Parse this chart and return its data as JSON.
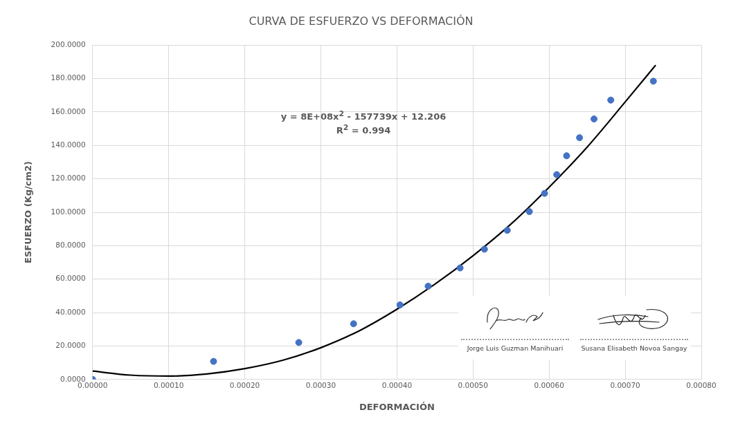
{
  "chart_data": {
    "type": "scatter",
    "title": "CURVA DE ESFUERZO VS DEFORMACIÓN",
    "xlabel": "DEFORMACIÓN",
    "ylabel": "ESFUERZO (Kg/cm2)",
    "xlim": [
      0,
      0.0008
    ],
    "xticks": [
      {
        "value": 0,
        "label": "0.00000"
      },
      {
        "value": 0.0001,
        "label": "0.00010"
      },
      {
        "value": 0.0002,
        "label": "0.00020"
      },
      {
        "value": 0.0003,
        "label": "0.00030"
      },
      {
        "value": 0.0004,
        "label": "0.00040"
      },
      {
        "value": 0.0005,
        "label": "0.00050"
      },
      {
        "value": 0.0006,
        "label": "0.00060"
      },
      {
        "value": 0.0007,
        "label": "0.00070"
      },
      {
        "value": 0.0008,
        "label": "0.00080"
      }
    ],
    "ylim": [
      0,
      200
    ],
    "yticks": [
      {
        "value": 0,
        "label": "0.0000"
      },
      {
        "value": 20,
        "label": "20.0000"
      },
      {
        "value": 40,
        "label": "40.0000"
      },
      {
        "value": 60,
        "label": "60.0000"
      },
      {
        "value": 80,
        "label": "80.0000"
      },
      {
        "value": 100,
        "label": "100.0000"
      },
      {
        "value": 120,
        "label": "120.0000"
      },
      {
        "value": 140,
        "label": "140.0000"
      },
      {
        "value": 160,
        "label": "160.0000"
      },
      {
        "value": 180,
        "label": "180.0000"
      },
      {
        "value": 200,
        "label": "200.0000"
      }
    ],
    "grid": true,
    "legend": false,
    "series": [
      {
        "type": "scatter",
        "color": "#4472c4",
        "marker": "circle",
        "x": [
          0,
          0.000159,
          0.000271,
          0.000343,
          0.000404,
          0.000441,
          0.000483,
          0.000515,
          0.000545,
          0.000574,
          0.000594,
          0.00061,
          0.000623,
          0.00064,
          0.000659,
          0.000681,
          0.000737
        ],
        "values": [
          0,
          10.8,
          22.1,
          33.3,
          44.6,
          55.8,
          66.7,
          77.9,
          89.2,
          100.4,
          111.3,
          122.5,
          133.8,
          144.6,
          155.8,
          167.1,
          178.4
        ]
      },
      {
        "type": "line",
        "color": "#000000",
        "marker": "none",
        "line_style": "solid",
        "x": [
          0,
          5e-05,
          0.0001,
          0.00015,
          0.0002,
          0.00025,
          0.0003,
          0.00035,
          0.0004,
          0.00045,
          0.0005,
          0.00055,
          0.0006,
          0.00065,
          0.0007,
          0.00074
        ],
        "values": [
          5,
          2.6,
          2,
          3.3,
          6.5,
          11.5,
          19,
          29,
          42,
          57,
          74,
          93,
          115,
          139,
          166,
          188
        ]
      }
    ],
    "annotations": [
      "y = 8E+08x$^{2}$ - 157739x + 12.206",
      "R$^{2}$ = 0.994",
      "Jorge Luis Guzman Manihuari",
      "Susana Elisabeth Novoa Sangay"
    ]
  }
}
